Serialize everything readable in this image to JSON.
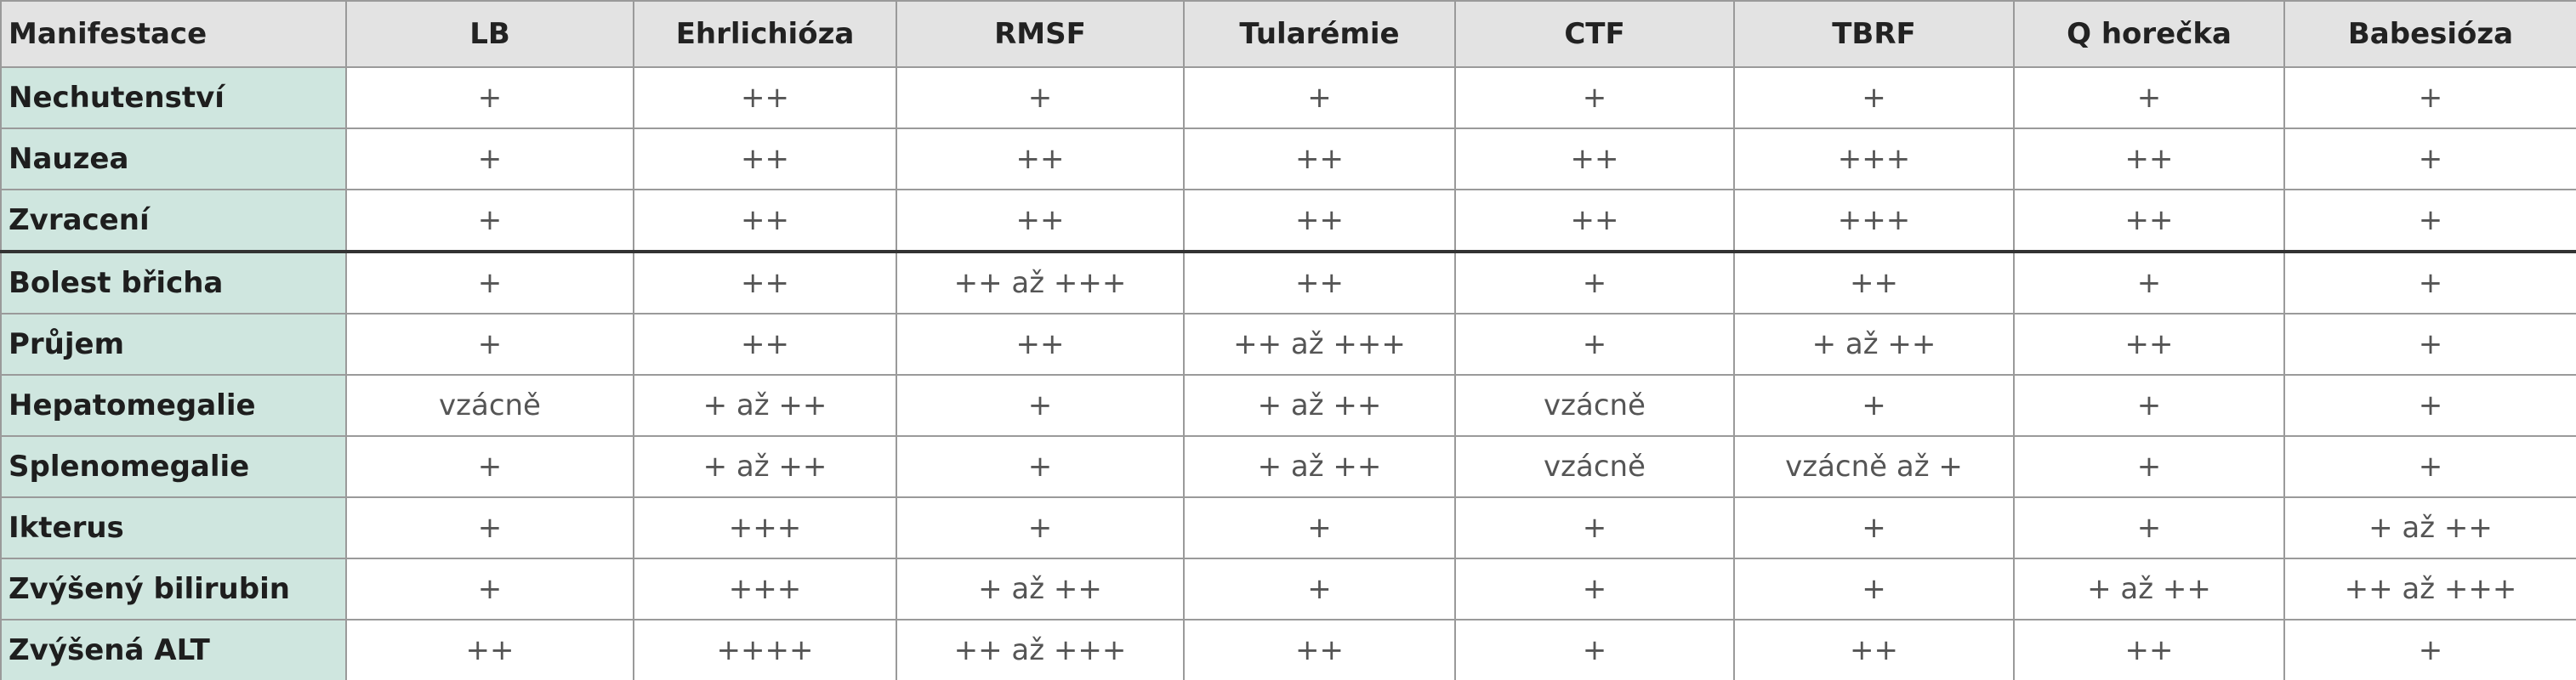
{
  "table": {
    "header": [
      "Manifestace",
      "LB",
      "Ehrlichióza",
      "RMSF",
      "Tularémie",
      "CTF",
      "TBRF",
      "Q horečka",
      "Babesióza"
    ],
    "rows": [
      [
        "Nechutenství",
        "+",
        "++",
        "+",
        "+",
        "+",
        "+",
        "+",
        "+"
      ],
      [
        "Nauzea",
        "+",
        "++",
        "++",
        "++",
        "++",
        "+++",
        "++",
        "+"
      ],
      [
        "Zvracení",
        "+",
        "++",
        "++",
        "++",
        "++",
        "+++",
        "++",
        "+"
      ],
      [
        "Bolest břicha",
        "+",
        "++",
        "++ až +++",
        "++",
        "+",
        "++",
        "+",
        "+"
      ],
      [
        "Průjem",
        "+",
        "++",
        "++",
        "++ až +++",
        "+",
        "+ až ++",
        "++",
        "+"
      ],
      [
        "Hepatomegalie",
        "vzácně",
        "+ až ++",
        "+",
        "+ až ++",
        "vzácně",
        "+",
        "+",
        "+"
      ],
      [
        "Splenomegalie",
        "+",
        "+ až ++",
        "+",
        "+ až ++",
        "vzácně",
        "vzácně až +",
        "+",
        "+"
      ],
      [
        "Ikterus",
        "+",
        "+++",
        "+",
        "+",
        "+",
        "+",
        "+",
        "+ až ++"
      ],
      [
        "Zvýšený bilirubin",
        "+",
        "+++",
        "+ až ++",
        "+",
        "+",
        "+",
        "+ až ++",
        "++ až +++"
      ],
      [
        "Zvýšená ALT",
        "++",
        "++++",
        "++ až +++",
        "++",
        "+",
        "++",
        "++",
        "+"
      ]
    ]
  }
}
